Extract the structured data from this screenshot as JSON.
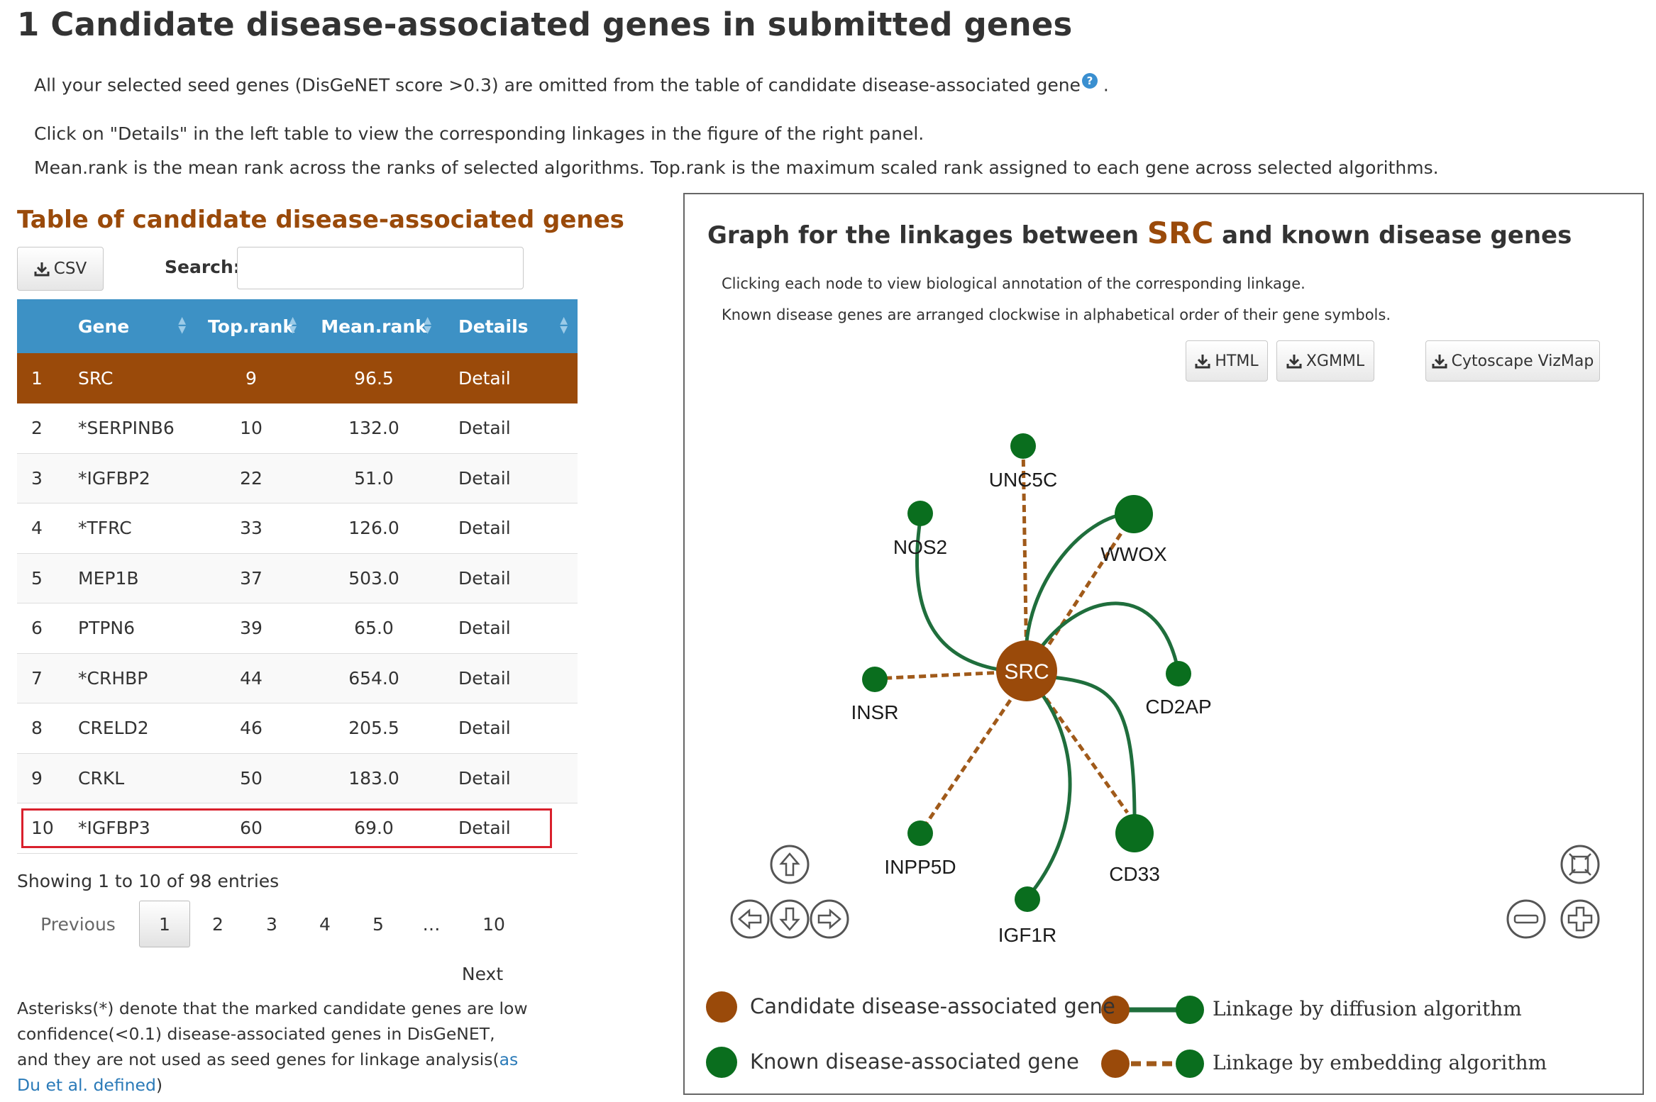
{
  "page": {
    "title": "1 Candidate disease-associated genes in submitted genes",
    "intro_seed": "All your selected seed genes (DisGeNET score >0.3) are omitted from the table of candidate disease-associated gene",
    "intro_seed_end": " .",
    "intro_click": "Click on \"Details\" in the left table to view the corresponding linkages in the figure of the right panel.",
    "intro_rank": "Mean.rank is the mean rank across the ranks of selected algorithms. Top.rank is the maximum scaled rank assigned to each gene across selected algorithms."
  },
  "table": {
    "heading": "Table of candidate disease-associated genes",
    "csv_label": "CSV",
    "search_label": "Search:",
    "search_value": "",
    "columns": [
      "",
      "Gene",
      "Top.rank",
      "Mean.rank",
      "Details"
    ],
    "rows": [
      {
        "idx": "1",
        "gene": "SRC",
        "top": "9",
        "mean": "96.5",
        "detail": "Detail"
      },
      {
        "idx": "2",
        "gene": "*SERPINB6",
        "top": "10",
        "mean": "132.0",
        "detail": "Detail"
      },
      {
        "idx": "3",
        "gene": "*IGFBP2",
        "top": "22",
        "mean": "51.0",
        "detail": "Detail"
      },
      {
        "idx": "4",
        "gene": "*TFRC",
        "top": "33",
        "mean": "126.0",
        "detail": "Detail"
      },
      {
        "idx": "5",
        "gene": "MEP1B",
        "top": "37",
        "mean": "503.0",
        "detail": "Detail"
      },
      {
        "idx": "6",
        "gene": "PTPN6",
        "top": "39",
        "mean": "65.0",
        "detail": "Detail"
      },
      {
        "idx": "7",
        "gene": "*CRHBP",
        "top": "44",
        "mean": "654.0",
        "detail": "Detail"
      },
      {
        "idx": "8",
        "gene": "CRELD2",
        "top": "46",
        "mean": "205.5",
        "detail": "Detail"
      },
      {
        "idx": "9",
        "gene": "CRKL",
        "top": "50",
        "mean": "183.0",
        "detail": "Detail"
      },
      {
        "idx": "10",
        "gene": "*IGFBP3",
        "top": "60",
        "mean": "69.0",
        "detail": "Detail"
      }
    ],
    "info": "Showing 1 to 10 of 98 entries",
    "pagination": {
      "previous": "Previous",
      "pages": [
        "1",
        "2",
        "3",
        "4",
        "5",
        "…",
        "10"
      ],
      "next": "Next"
    },
    "footnote_main": "Asterisks(*) denote that the marked candidate genes are low confidence(<0.1) disease-associated genes in DisGeNET, and they are not used as seed genes for linkage analysis(",
    "footnote_link": "as Du et al. defined",
    "footnote_end": ")"
  },
  "graph": {
    "title_prefix": "Graph for the linkages between ",
    "title_gene": "SRC",
    "title_suffix": " and known disease genes",
    "note1": "Clicking each node to view biological annotation of the corresponding linkage.",
    "note2": "Known disease genes are arranged clockwise in alphabetical order of their gene symbols.",
    "btn_html": "HTML",
    "btn_xgmml": "XGMML",
    "btn_vizmap": "Cytoscape VizMap",
    "center_node": "SRC",
    "nodes": [
      "UNC5C",
      "WWOX",
      "CD2AP",
      "CD33",
      "IGF1R",
      "INPP5D",
      "INSR",
      "NOS2"
    ],
    "legend": {
      "candidate": "Candidate disease-associated gene",
      "known": "Known disease-associated gene",
      "diffusion": "Linkage by diffusion algorithm",
      "embedding": "Linkage by embedding algorithm"
    },
    "colors": {
      "candidate": "#9a4a0a",
      "known": "#0a6e1e",
      "diffusion_edge": "#1f6e3c",
      "embedding_edge": "#a05a1a"
    }
  }
}
